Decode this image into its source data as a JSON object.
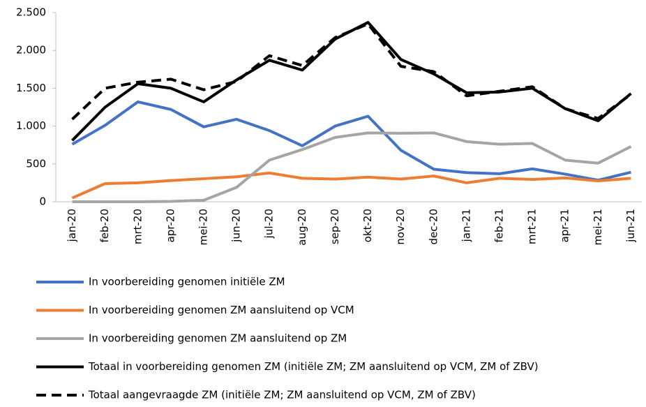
{
  "chart_data": {
    "type": "line",
    "categories": [
      "jan-20",
      "feb-20",
      "mrt-20",
      "apr-20",
      "mei-20",
      "jun-20",
      "jul-20",
      "aug-20",
      "sep-20",
      "okt-20",
      "nov-20",
      "dec-20",
      "jan-21",
      "feb-21",
      "mrt-21",
      "apr-21",
      "mei-21",
      "jun-21"
    ],
    "series": [
      {
        "name": "In voorbereiding genomen initiële ZM",
        "color": "#4472c4",
        "dash": false,
        "values": [
          760,
          1010,
          1320,
          1220,
          990,
          1090,
          940,
          740,
          1000,
          1130,
          680,
          430,
          385,
          370,
          435,
          365,
          285,
          390
        ]
      },
      {
        "name": "In voorbereiding genomen ZM aansluitend op VCM",
        "color": "#ed7d31",
        "dash": false,
        "values": [
          50,
          240,
          250,
          280,
          305,
          330,
          380,
          310,
          300,
          325,
          300,
          340,
          250,
          310,
          295,
          315,
          275,
          310
        ]
      },
      {
        "name": "In voorbereiding genomen ZM aansluitend op ZM",
        "color": "#a5a5a5",
        "dash": false,
        "values": [
          0,
          0,
          0,
          5,
          20,
          190,
          550,
          690,
          850,
          910,
          905,
          910,
          795,
          760,
          770,
          550,
          510,
          730
        ]
      },
      {
        "name": "Totaal in voorbereiding genomen ZM (initiële ZM; ZM aansluitend op VCM, ZM of ZBV)",
        "color": "#000000",
        "dash": false,
        "values": [
          810,
          1250,
          1560,
          1500,
          1320,
          1610,
          1870,
          1740,
          2150,
          2370,
          1880,
          1690,
          1440,
          1450,
          1500,
          1230,
          1070,
          1430
        ]
      },
      {
        "name": "Totaal aangevraagde ZM (initiële ZM; ZM aansluitend op VCM, ZM of ZBV)",
        "color": "#000000",
        "dash": true,
        "values": [
          1090,
          1500,
          1580,
          1620,
          1480,
          1590,
          1930,
          1800,
          2170,
          2350,
          1790,
          1720,
          1400,
          1460,
          1520,
          1230,
          1100,
          1420
        ]
      }
    ],
    "ylim": [
      0,
      2500
    ],
    "yticks": [
      0,
      {
        "value": 500,
        "label": "500"
      },
      {
        "value": 1000,
        "label": "1.000"
      },
      {
        "value": 1500,
        "label": "1.500"
      },
      {
        "value": 2000,
        "label": "2.000"
      },
      {
        "value": 2500,
        "label": "2.500"
      }
    ],
    "legend": "bottom"
  }
}
